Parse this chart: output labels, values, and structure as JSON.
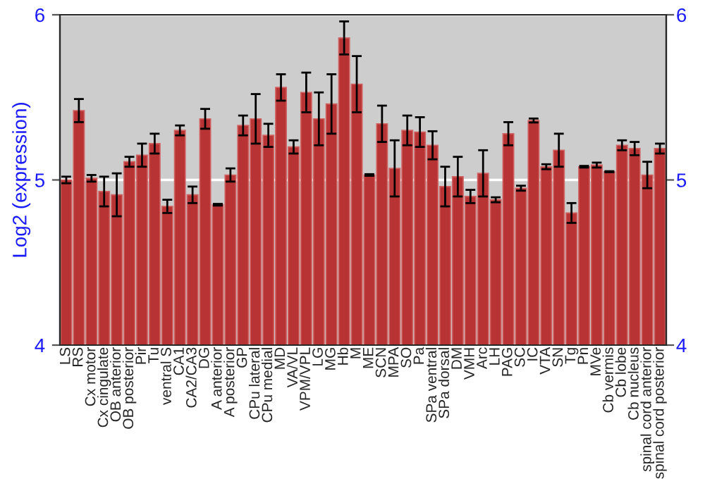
{
  "chart_data": {
    "type": "bar",
    "ylabel": "Log2 (expression)",
    "categories": [
      "LS",
      "RS",
      "Cx motor",
      "Cx cingulate",
      "OB anterior",
      "OB posterior",
      "Pir",
      "Tu",
      "ventral S",
      "CA1",
      "CA2/CA3",
      "DG",
      "A anterior",
      "A posterior",
      "GP",
      "CPu lateral",
      "CPu medial",
      "MD",
      "VA/VL",
      "VPM/VPL",
      "LG",
      "MG",
      "Hb",
      "M",
      "ME",
      "SCN",
      "MPA",
      "SO",
      "Pa",
      "SPa ventral",
      "SPa dorsal",
      "DM",
      "VMH",
      "Arc",
      "LH",
      "PAG",
      "SC",
      "IC",
      "VTA",
      "SN",
      "Tg",
      "Pn",
      "MVe",
      "Cb vermis",
      "Cb lobe",
      "Cb nucleus",
      "spinal cord anterior",
      "spinal cord posterior"
    ],
    "values": [
      5.0,
      5.42,
      5.01,
      4.93,
      4.91,
      5.11,
      5.15,
      5.22,
      4.84,
      5.3,
      4.91,
      5.37,
      4.85,
      5.03,
      5.33,
      5.37,
      5.27,
      5.56,
      5.2,
      5.53,
      5.37,
      5.46,
      5.86,
      5.58,
      5.03,
      5.34,
      5.07,
      5.3,
      5.29,
      5.21,
      4.96,
      5.02,
      4.9,
      5.04,
      4.88,
      5.28,
      4.95,
      5.36,
      5.08,
      5.18,
      4.8,
      5.08,
      5.09,
      5.05,
      5.21,
      5.19,
      5.03,
      5.19
    ],
    "errors": [
      0.02,
      0.07,
      0.02,
      0.09,
      0.13,
      0.03,
      0.07,
      0.06,
      0.04,
      0.03,
      0.05,
      0.06,
      0.005,
      0.04,
      0.06,
      0.15,
      0.07,
      0.08,
      0.04,
      0.12,
      0.16,
      0.18,
      0.1,
      0.17,
      0.005,
      0.11,
      0.17,
      0.09,
      0.09,
      0.085,
      0.12,
      0.12,
      0.04,
      0.14,
      0.015,
      0.07,
      0.015,
      0.012,
      0.015,
      0.1,
      0.06,
      0.005,
      0.015,
      0.003,
      0.03,
      0.04,
      0.08,
      0.03
    ],
    "color": "#b83434",
    "ylim": [
      4,
      6
    ],
    "yticks": [
      4,
      5,
      6
    ],
    "y2lim": [
      4,
      6
    ],
    "y2ticks": [
      4,
      5,
      6
    ],
    "grid": "y",
    "legend": false
  }
}
